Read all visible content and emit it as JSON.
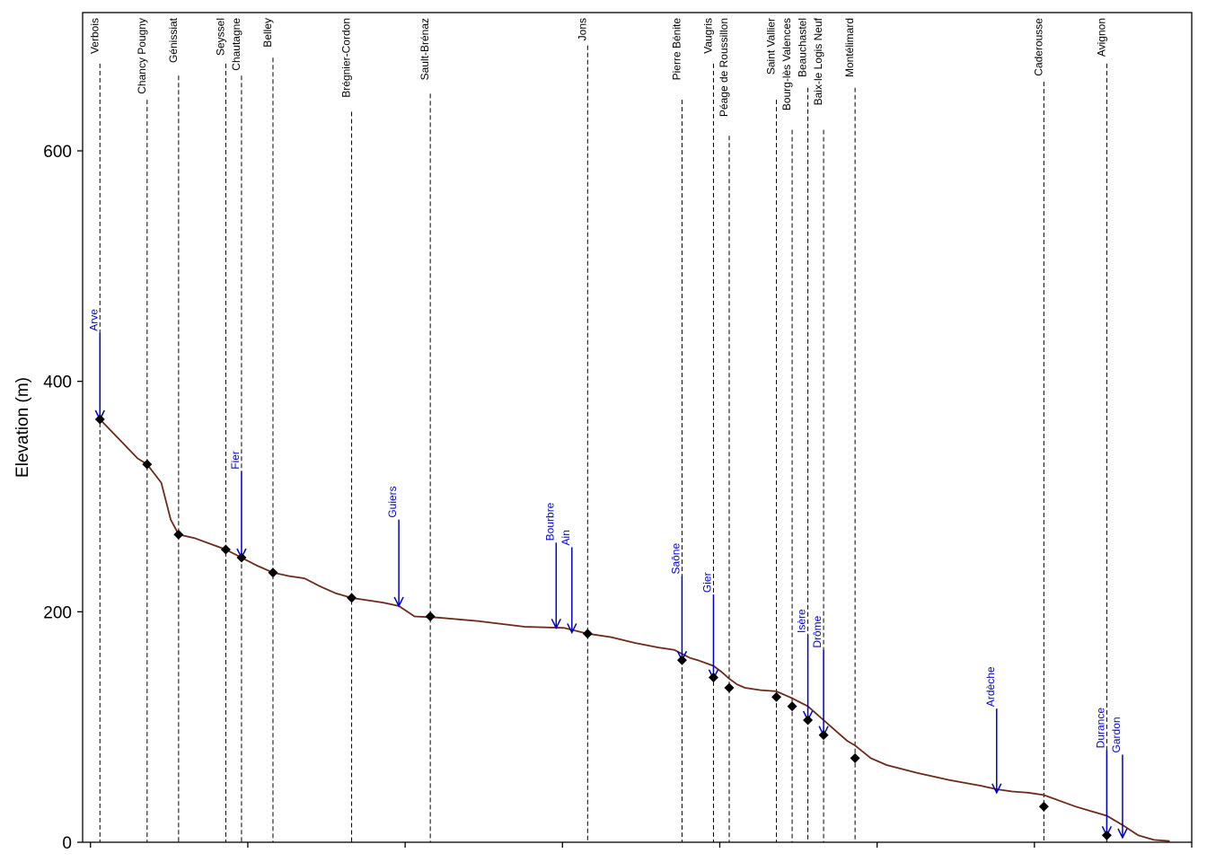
{
  "chart_data": {
    "type": "line",
    "ylabel": "Elevation (m)",
    "xlabel": "",
    "ylim": [
      0,
      720
    ],
    "xlim": [
      -5,
      700
    ],
    "y_ticks": [
      0,
      200,
      400,
      600
    ],
    "x_ticks_unlabeled": [
      0,
      100,
      200,
      300,
      400,
      500,
      600,
      700
    ],
    "grid": false,
    "colors": {
      "profile": "#6B2A1A",
      "tributary": "#0000CC",
      "dam_line": "#000000",
      "marker": "#000000"
    },
    "profile": [
      [
        6,
        367
      ],
      [
        18,
        350
      ],
      [
        30,
        333
      ],
      [
        36,
        328
      ],
      [
        45,
        312
      ],
      [
        51,
        280
      ],
      [
        56,
        267
      ],
      [
        66,
        264
      ],
      [
        78,
        258
      ],
      [
        86,
        254
      ],
      [
        96,
        247
      ],
      [
        106,
        240
      ],
      [
        116,
        234
      ],
      [
        126,
        231
      ],
      [
        136,
        229
      ],
      [
        146,
        222
      ],
      [
        156,
        216
      ],
      [
        166,
        212
      ],
      [
        176,
        210
      ],
      [
        186,
        208
      ],
      [
        196,
        205
      ],
      [
        206,
        196
      ],
      [
        221,
        195
      ],
      [
        246,
        192
      ],
      [
        276,
        187
      ],
      [
        301,
        186
      ],
      [
        316,
        181
      ],
      [
        331,
        178
      ],
      [
        346,
        173
      ],
      [
        361,
        169
      ],
      [
        371,
        167
      ],
      [
        381,
        160
      ],
      [
        386,
        158
      ],
      [
        396,
        153
      ],
      [
        401,
        148
      ],
      [
        406,
        142
      ],
      [
        411,
        137
      ],
      [
        416,
        134
      ],
      [
        426,
        132
      ],
      [
        436,
        131
      ],
      [
        446,
        125
      ],
      [
        456,
        118
      ],
      [
        461,
        112
      ],
      [
        466,
        106
      ],
      [
        471,
        100
      ],
      [
        476,
        94
      ],
      [
        481,
        88
      ],
      [
        486,
        84
      ],
      [
        496,
        73
      ],
      [
        506,
        67
      ],
      [
        526,
        60
      ],
      [
        546,
        54
      ],
      [
        566,
        49
      ],
      [
        576,
        46
      ],
      [
        586,
        44
      ],
      [
        596,
        43
      ],
      [
        606,
        41
      ],
      [
        616,
        36
      ],
      [
        626,
        31
      ],
      [
        636,
        27
      ],
      [
        646,
        23
      ],
      [
        656,
        15
      ],
      [
        666,
        6
      ],
      [
        676,
        2
      ],
      [
        686,
        1
      ]
    ],
    "dams": [
      {
        "name": "Verbois",
        "x": 6,
        "y": 367
      },
      {
        "name": "Chancy Pougny",
        "x": 36,
        "y": 328
      },
      {
        "name": "Génissiat",
        "x": 56,
        "y": 267
      },
      {
        "name": "Seyssel",
        "x": 86,
        "y": 254
      },
      {
        "name": "Chautagne",
        "x": 96,
        "y": 247
      },
      {
        "name": "Belley",
        "x": 116,
        "y": 234
      },
      {
        "name": "Brégnier-Cordon",
        "x": 166,
        "y": 212
      },
      {
        "name": "Sault-Brénaz",
        "x": 216,
        "y": 196
      },
      {
        "name": "Jons",
        "x": 316,
        "y": 181
      },
      {
        "name": "Pierre Bénite",
        "x": 376,
        "y": 158
      },
      {
        "name": "Vaugris",
        "x": 396,
        "y": 143
      },
      {
        "name": "Péage de Roussillon",
        "x": 406,
        "y": 134
      },
      {
        "name": "Saint Vallier",
        "x": 436,
        "y": 126
      },
      {
        "name": "Bourg-lès Valences",
        "x": 446,
        "y": 118
      },
      {
        "name": "Beauchastel",
        "x": 456,
        "y": 106
      },
      {
        "name": "Baix-le Logis Neuf",
        "x": 466,
        "y": 93
      },
      {
        "name": "Montélimard",
        "x": 486,
        "y": 73
      },
      {
        "name": "Caderousse",
        "x": 606,
        "y": 31
      },
      {
        "name": "Avignon",
        "x": 646,
        "y": 6
      }
    ],
    "tributaries": [
      {
        "name": "Arve",
        "x": 6,
        "top": 442,
        "y": 367
      },
      {
        "name": "Fier",
        "x": 96,
        "top": 322,
        "y": 247
      },
      {
        "name": "Guiers",
        "x": 196,
        "top": 280,
        "y": 205
      },
      {
        "name": "Bourbre",
        "x": 296,
        "top": 260,
        "y": 186
      },
      {
        "name": "Ain",
        "x": 306,
        "top": 256,
        "y": 182
      },
      {
        "name": "Saône",
        "x": 376,
        "top": 231,
        "y": 158
      },
      {
        "name": "Gier",
        "x": 396,
        "top": 215,
        "y": 142
      },
      {
        "name": "Isère",
        "x": 456,
        "top": 180,
        "y": 106
      },
      {
        "name": "Drôme",
        "x": 466,
        "top": 167,
        "y": 93
      },
      {
        "name": "Ardèche",
        "x": 576,
        "top": 116,
        "y": 43
      },
      {
        "name": "Durance",
        "x": 646,
        "top": 80,
        "y": 6
      },
      {
        "name": "Gardon",
        "x": 656,
        "top": 76,
        "y": 4
      }
    ]
  }
}
